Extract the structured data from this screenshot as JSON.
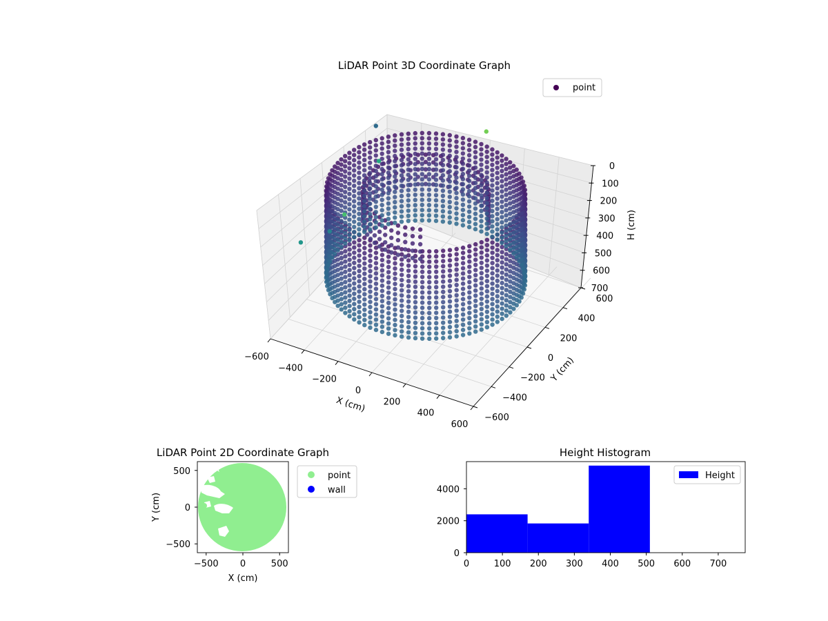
{
  "chart_data": [
    {
      "type": "scatter",
      "title": "LiDAR Point 3D Coordinate Graph",
      "xlabel": "X (cm)",
      "ylabel": "Y (cm)",
      "zlabel": "H (cm)",
      "xlim": [
        -600,
        600
      ],
      "ylim": [
        -600,
        600
      ],
      "zlim": [
        0,
        700
      ],
      "x_ticks": [
        "−600",
        "−400",
        "−200",
        "0",
        "200",
        "400",
        "600"
      ],
      "y_ticks": [
        "−600",
        "−400",
        "−200",
        "0",
        "200",
        "400",
        "600"
      ],
      "z_ticks": [
        "0",
        "100",
        "200",
        "300",
        "400",
        "500",
        "600",
        "700"
      ],
      "z_inverted": true,
      "legend": {
        "entries": [
          {
            "label": "point",
            "color": "#440154"
          }
        ],
        "placement": "upper-right"
      },
      "series": [
        {
          "name": "point",
          "shape": "cylindrical ring of points",
          "ring_radius": 520,
          "height_range": [
            0,
            520
          ],
          "colormap": "viridis",
          "x": [],
          "y": [],
          "h": []
        }
      ]
    },
    {
      "type": "scatter",
      "title": "LiDAR Point 2D Coordinate Graph",
      "xlabel": "X (cm)",
      "ylabel": "Y (cm)",
      "xlim": [
        -620,
        620
      ],
      "ylim": [
        -620,
        620
      ],
      "x_ticks": [
        -500,
        0,
        500
      ],
      "y_ticks": [
        500,
        0,
        -500
      ],
      "legend": {
        "entries": [
          {
            "label": "point",
            "color": "#90EE90"
          },
          {
            "label": "wall",
            "color": "#0000FF"
          }
        ],
        "placement": "outside-right"
      },
      "series": [
        {
          "name": "point",
          "color": "#90EE90",
          "shape": "filled disk",
          "radius": 580
        },
        {
          "name": "wall",
          "color": "#0000FF",
          "values": []
        }
      ]
    },
    {
      "type": "bar",
      "title": "Height Histogram",
      "xlim": [
        0,
        775
      ],
      "ylim": [
        0,
        5700
      ],
      "x_ticks": [
        0,
        100,
        200,
        300,
        400,
        500,
        600,
        700
      ],
      "y_ticks": [
        0,
        2000,
        4000
      ],
      "legend": {
        "entries": [
          {
            "label": "Height",
            "color": "#0000FF"
          }
        ],
        "placement": "upper-right"
      },
      "bins": [
        {
          "from": 0,
          "to": 170,
          "count": 2400
        },
        {
          "from": 170,
          "to": 340,
          "count": 1830
        },
        {
          "from": 340,
          "to": 510,
          "count": 5450
        },
        {
          "from": 510,
          "to": 680,
          "count": 0
        },
        {
          "from": 680,
          "to": 775,
          "count": 0
        }
      ],
      "color": "#0000FF"
    }
  ]
}
